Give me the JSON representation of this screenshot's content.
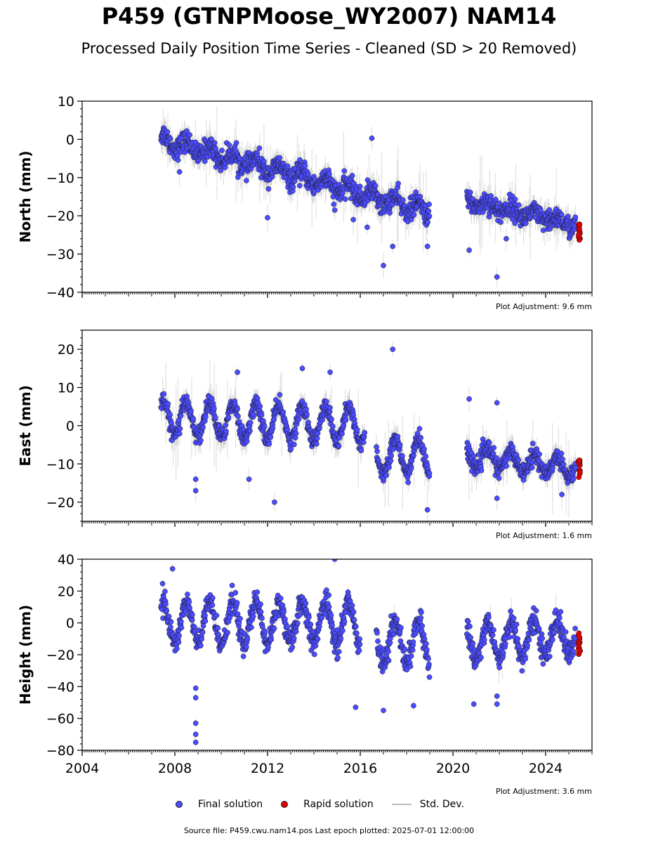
{
  "title": "P459 (GTNPMoose_WY2007) NAM14",
  "subtitle": "Processed Daily Position Time Series - Cleaned (SD > 20 Removed)",
  "legend": {
    "final": "Final solution",
    "rapid": "Rapid solution",
    "std": "Std. Dev."
  },
  "colors": {
    "final": "#4b4bff",
    "rapid": "#e00000",
    "std": "#bdbdbd"
  },
  "source": "Source file: P459.cwu.nam14.pos  Last epoch plotted: 2025-07-01 12:00:00",
  "chart_data": [
    {
      "type": "scatter",
      "ylabel": "North (mm)",
      "xlim": [
        2004,
        2026
      ],
      "ylim": [
        -40,
        10
      ],
      "yticks": [
        10,
        0,
        -10,
        -20,
        -30,
        -40
      ],
      "xticks": [
        2004,
        2008,
        2012,
        2016,
        2020,
        2024
      ],
      "show_xtick_labels": false,
      "adjustment": "Plot Adjustment: 9.6 mm",
      "final": {
        "segments": [
          {
            "start": 2007.4,
            "end": 2019.0,
            "startY": 0,
            "endY": -19,
            "amp": 1.5
          },
          {
            "start": 2020.6,
            "end": 2025.3,
            "startY": -16,
            "endY": -22.5,
            "amp": 1.0
          }
        ],
        "scatter": 3.0,
        "outliers": [
          [
            2016.5,
            0.3
          ],
          [
            2017.0,
            -33
          ],
          [
            2017.4,
            -28
          ],
          [
            2021.9,
            -36
          ],
          [
            2020.7,
            -29
          ],
          [
            2022.3,
            -26
          ],
          [
            2018.9,
            -28
          ],
          [
            2016.3,
            -23
          ],
          [
            2008.2,
            -8.5
          ],
          [
            2012.0,
            -20.5
          ],
          [
            2014.9,
            -18.5
          ],
          [
            2015.7,
            -21
          ]
        ]
      },
      "rapid": {
        "start": 2025.4,
        "end": 2025.5,
        "center": -24.5,
        "spread": 2.0
      }
    },
    {
      "type": "scatter",
      "ylabel": "East (mm)",
      "xlim": [
        2004,
        2026
      ],
      "ylim": [
        -25,
        25
      ],
      "yticks": [
        20,
        10,
        0,
        -10,
        -20
      ],
      "xticks": [
        2004,
        2008,
        2012,
        2016,
        2020,
        2024
      ],
      "show_xtick_labels": false,
      "adjustment": "Plot Adjustment: 1.6 mm",
      "final": {
        "segments": [
          {
            "start": 2007.4,
            "end": 2016.2,
            "startY": 2,
            "endY": 0,
            "amp": 4.5
          },
          {
            "start": 2016.7,
            "end": 2019.0,
            "startY": -8,
            "endY": -8,
            "amp": 4.5
          },
          {
            "start": 2020.6,
            "end": 2025.3,
            "startY": -8,
            "endY": -11,
            "amp": 2.5
          }
        ],
        "scatter": 2.5,
        "outliers": [
          [
            2017.4,
            20
          ],
          [
            2012.3,
            -20
          ],
          [
            2018.9,
            -22
          ],
          [
            2008.9,
            -17
          ],
          [
            2008.9,
            -14
          ],
          [
            2010.7,
            14
          ],
          [
            2014.7,
            14
          ],
          [
            2013.5,
            15
          ],
          [
            2021.9,
            -19
          ],
          [
            2024.7,
            -18
          ],
          [
            2020.7,
            7
          ],
          [
            2021.9,
            6
          ],
          [
            2011.2,
            -14
          ]
        ]
      },
      "rapid": {
        "start": 2025.4,
        "end": 2025.5,
        "center": -11,
        "spread": 2.0
      }
    },
    {
      "type": "scatter",
      "ylabel": "Height (mm)",
      "xlim": [
        2004,
        2026
      ],
      "ylim": [
        -80,
        40
      ],
      "yticks": [
        40,
        20,
        0,
        -20,
        -40,
        -60,
        -80
      ],
      "xticks": [
        2004,
        2008,
        2012,
        2016,
        2020,
        2024
      ],
      "show_xtick_labels": true,
      "adjustment": "Plot Adjustment: 3.6 mm",
      "final": {
        "segments": [
          {
            "start": 2007.4,
            "end": 2016.0,
            "startY": 0,
            "endY": 0,
            "amp": 13
          },
          {
            "start": 2016.7,
            "end": 2019.0,
            "startY": -12,
            "endY": -12,
            "amp": 13
          },
          {
            "start": 2020.6,
            "end": 2025.3,
            "startY": -12,
            "endY": -8,
            "amp": 11
          }
        ],
        "scatter": 8.0,
        "outliers": [
          [
            2008.9,
            -75
          ],
          [
            2008.9,
            -70
          ],
          [
            2008.9,
            -63
          ],
          [
            2008.9,
            -47
          ],
          [
            2008.9,
            -41
          ],
          [
            2014.9,
            40
          ],
          [
            2015.8,
            -53
          ],
          [
            2017.0,
            -55
          ],
          [
            2018.3,
            -52
          ],
          [
            2021.9,
            -51
          ],
          [
            2020.9,
            -51
          ],
          [
            2007.9,
            34
          ],
          [
            2021.9,
            -46
          ]
        ]
      },
      "rapid": {
        "start": 2025.4,
        "end": 2025.5,
        "center": -13,
        "spread": 6.0
      }
    }
  ]
}
